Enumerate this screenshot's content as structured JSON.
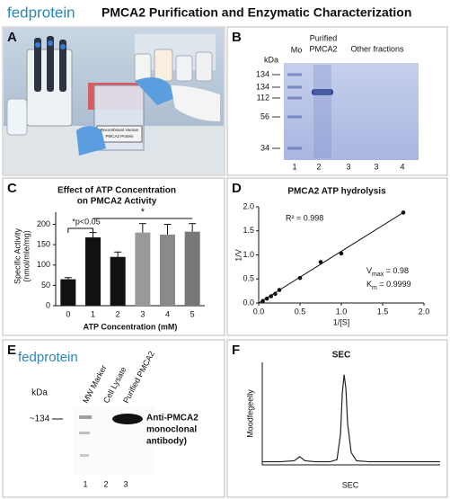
{
  "header": {
    "brand": "fedprotein",
    "title": "PMCA2 Purification and Enzymatic Characterization"
  },
  "panel_labels": [
    "A",
    "B",
    "C",
    "D",
    "E",
    "F"
  ],
  "photo": {
    "box_label": [
      "Recombinant Human",
      "PMCA2 Protein"
    ]
  },
  "gel": {
    "kda": "kDa",
    "lane_headers": [
      "Mo",
      "Purified",
      "PMCA2",
      "Other fractions"
    ],
    "markers": [
      134,
      134,
      112,
      56,
      34
    ],
    "lanes": [
      1,
      2,
      3,
      3,
      4
    ]
  },
  "blot": {
    "brand": "fedprotein",
    "kda": "kDa",
    "marker": "~134",
    "lane_headers": [
      "MW Marker",
      "Cell Lysate",
      "Purified PMCA2"
    ],
    "antibody": [
      "Anti-PMCA2",
      "monoclonal",
      "antibody)"
    ],
    "lanes": [
      1,
      2,
      3
    ]
  },
  "chart_data": [
    {
      "type": "bar",
      "title": [
        "Effect of ATP Concentration",
        "on PMCA2 Activity"
      ],
      "x_label": "ATP Concentration (mM)",
      "y_label": [
        "Specific Activity",
        "(nmol/mle/mg)"
      ],
      "categories": [
        "0",
        "1",
        "2",
        "3",
        "4",
        "5"
      ],
      "values": [
        65,
        168,
        120,
        180,
        175,
        182
      ],
      "errors": [
        4,
        12,
        12,
        22,
        25,
        20
      ],
      "colors": [
        "#111111",
        "#111111",
        "#111111",
        "#9a9a9a",
        "#8a8a8a",
        "#777777"
      ],
      "ylim": [
        0,
        230
      ],
      "yticks": [
        0,
        50,
        100,
        150,
        200
      ],
      "annotations": [
        "*p<0.05",
        "*"
      ]
    },
    {
      "type": "scatter",
      "title": "PMCA2 ATP hydrolysis",
      "x_label": "1/[S]",
      "y_label": "1/V",
      "x": [
        0.05,
        0.1,
        0.15,
        0.2,
        0.25,
        0.5,
        0.75,
        1.0,
        1.75
      ],
      "values": [
        0.04,
        0.09,
        0.14,
        0.19,
        0.27,
        0.52,
        0.85,
        1.03,
        1.88
      ],
      "trendline": {
        "x": [
          0,
          1.75
        ],
        "y": [
          0,
          1.88
        ]
      },
      "color": "#111111",
      "xlim": [
        0,
        2
      ],
      "xticks": [
        {
          "value": 0,
          "label": "0.0"
        },
        0.5,
        {
          "value": 1,
          "label": "1.0"
        },
        1.5,
        {
          "value": 2,
          "label": "2.0"
        }
      ],
      "ylim": [
        0,
        2
      ],
      "yticks": [
        {
          "value": 0,
          "label": "0.0"
        },
        0.5,
        {
          "value": 1,
          "label": "1.0"
        },
        1.5,
        {
          "value": 2,
          "label": "2.0"
        }
      ],
      "annotations": {
        "r2": "R² = 0.998",
        "vmax": {
          "symbol": "V",
          "sub": "max",
          "rest": " = 0.98"
        },
        "km": {
          "symbol": "K",
          "sub": "m",
          "rest": " = 0.9999"
        }
      }
    },
    {
      "type": "line",
      "title": "SEC",
      "x_label": "SEC",
      "y_label": "Moodfegeelly",
      "color": "#222222",
      "x": [
        0,
        10,
        18,
        21,
        24,
        30,
        38,
        42,
        44,
        45,
        46,
        47,
        48,
        50,
        53,
        60,
        70,
        85,
        100
      ],
      "values": [
        0.03,
        0.03,
        0.04,
        0.08,
        0.04,
        0.03,
        0.03,
        0.05,
        0.3,
        0.7,
        0.88,
        0.75,
        0.4,
        0.12,
        0.04,
        0.03,
        0.03,
        0.03,
        0.03
      ],
      "xlim": [
        0,
        100
      ],
      "ylim": [
        0,
        1
      ]
    }
  ]
}
